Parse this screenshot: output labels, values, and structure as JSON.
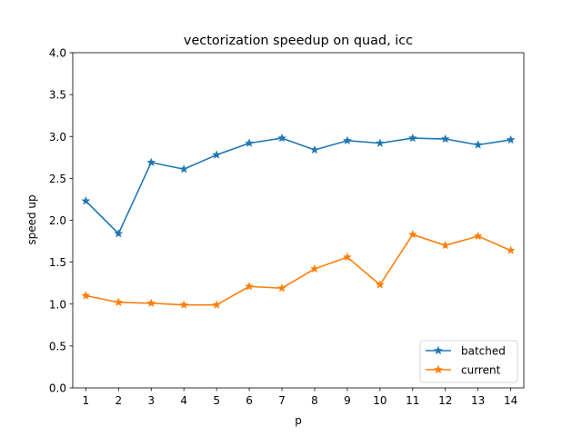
{
  "chart_data": {
    "type": "line",
    "title": "vectorization speedup on quad, icc",
    "xlabel": "p",
    "ylabel": "speed up",
    "x": [
      1,
      2,
      3,
      4,
      5,
      6,
      7,
      8,
      9,
      10,
      11,
      12,
      13,
      14
    ],
    "xticks": [
      "1",
      "2",
      "3",
      "4",
      "5",
      "6",
      "7",
      "8",
      "9",
      "10",
      "11",
      "12",
      "13",
      "14"
    ],
    "xlim": [
      0.6,
      14.4
    ],
    "ylim": [
      0.0,
      4.0
    ],
    "yticks": [
      "0.0",
      "0.5",
      "1.0",
      "1.5",
      "2.0",
      "2.5",
      "3.0",
      "3.5",
      "4.0"
    ],
    "grid": false,
    "legend_position": "lower-right",
    "marker": "star",
    "series": [
      {
        "name": "batched",
        "color": "#1f77b4",
        "values": [
          2.23,
          1.84,
          2.69,
          2.61,
          2.78,
          2.92,
          2.98,
          2.84,
          2.95,
          2.92,
          2.98,
          2.97,
          2.9,
          2.96
        ]
      },
      {
        "name": "current",
        "color": "#ff7f0e",
        "values": [
          1.1,
          1.02,
          1.01,
          0.99,
          0.99,
          1.21,
          1.19,
          1.42,
          1.56,
          1.23,
          1.83,
          1.7,
          1.81,
          1.64
        ]
      }
    ]
  }
}
